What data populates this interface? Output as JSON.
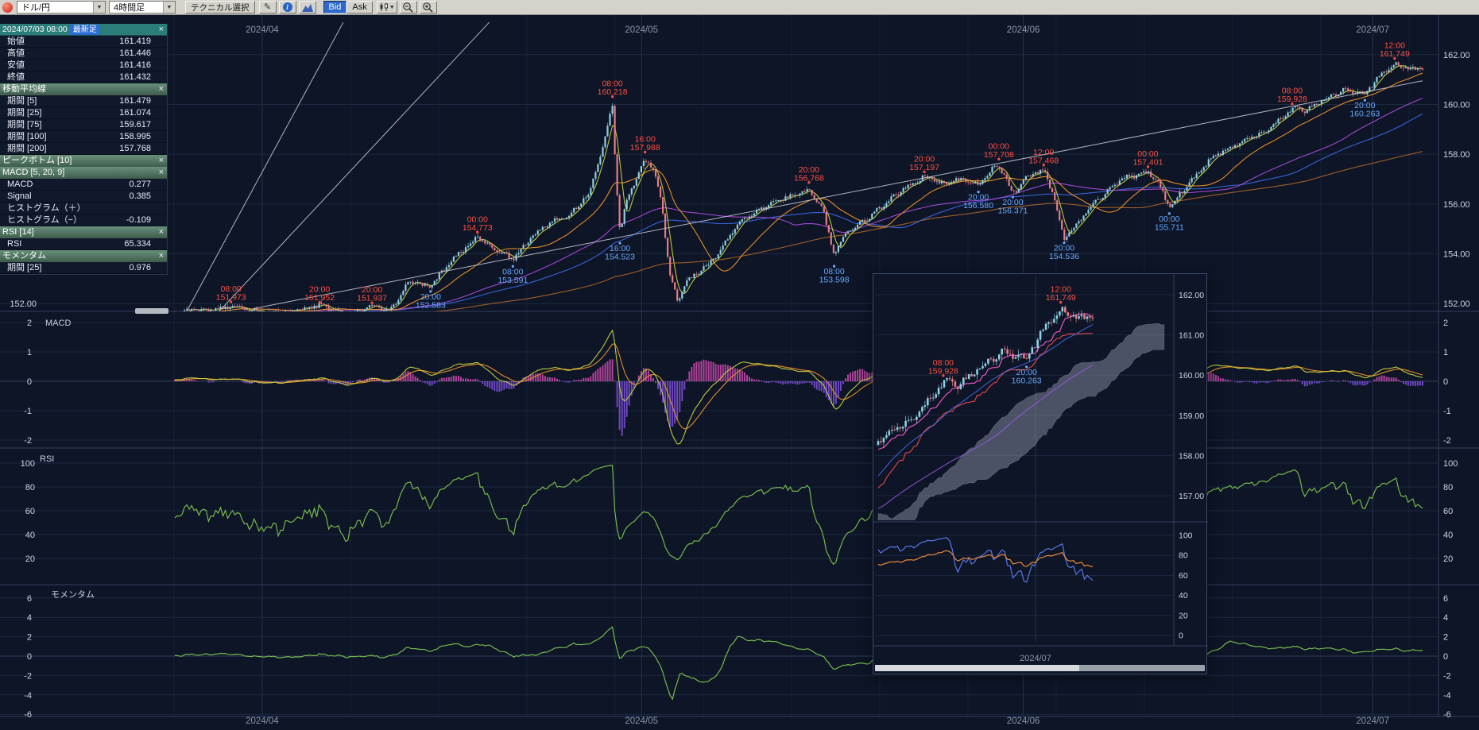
{
  "toolbar": {
    "pair": "ドル/円",
    "timeframe": "4時間足",
    "technical": "テクニカル選択",
    "bid": "Bid",
    "ask": "Ask"
  },
  "info_panel": {
    "timestamp": "2024/07/03 08:00",
    "latest_badge": "最新足",
    "close_glyph": "×",
    "groups": [
      {
        "type": "rows",
        "rows": [
          [
            "始値",
            "161.419"
          ],
          [
            "高値",
            "161.446"
          ],
          [
            "安値",
            "161.416"
          ],
          [
            "終値",
            "161.432"
          ]
        ]
      },
      {
        "type": "section",
        "title": "移動平均線",
        "rows": [
          [
            "期間 [5]",
            "161.479"
          ],
          [
            "期間 [25]",
            "161.074"
          ],
          [
            "期間 [75]",
            "159.617"
          ],
          [
            "期間 [100]",
            "158.995"
          ],
          [
            "期間 [200]",
            "157.768"
          ]
        ]
      },
      {
        "type": "section",
        "title": "ピークボトム [10]",
        "rows": []
      },
      {
        "type": "section",
        "title": "MACD [5, 20, 9]",
        "rows": [
          [
            "MACD",
            "0.277"
          ],
          [
            "Signal",
            "0.385"
          ],
          [
            "ヒストグラム（＋）",
            ""
          ],
          [
            "ヒストグラム（−）",
            "-0.109"
          ]
        ]
      },
      {
        "type": "section",
        "title": "RSI [14]",
        "rows": [
          [
            "RSI",
            "65.334"
          ]
        ]
      },
      {
        "type": "section",
        "title": "モメンタム",
        "rows": [
          [
            "期間 [25]",
            "0.976"
          ]
        ]
      }
    ]
  },
  "chart_data": {
    "type": "candlestick",
    "title": "ドル/円 4時間足",
    "x_labels": [
      "2024/04",
      "2024/05",
      "2024/06",
      "2024/07"
    ],
    "x_label_t": [
      0.07,
      0.374,
      0.68,
      0.96
    ],
    "main": {
      "y_ticks": [
        "162.00",
        "160.00",
        "158.00",
        "156.00",
        "154.00",
        "152.00"
      ],
      "y_tick_values": [
        162,
        160,
        158,
        156,
        154,
        152
      ]
    },
    "price_path": [
      [
        0.0,
        151.6
      ],
      [
        0.025,
        151.75
      ],
      [
        0.045,
        151.9
      ],
      [
        0.068,
        151.62
      ],
      [
        0.09,
        151.72
      ],
      [
        0.116,
        151.88
      ],
      [
        0.138,
        151.62
      ],
      [
        0.158,
        151.87
      ],
      [
        0.172,
        151.65
      ],
      [
        0.188,
        152.95
      ],
      [
        0.205,
        152.68
      ],
      [
        0.222,
        153.7
      ],
      [
        0.2425,
        154.7
      ],
      [
        0.255,
        154.25
      ],
      [
        0.2709,
        153.72
      ],
      [
        0.287,
        154.7
      ],
      [
        0.302,
        155.35
      ],
      [
        0.318,
        155.6
      ],
      [
        0.332,
        156.4
      ],
      [
        0.343,
        158.3
      ],
      [
        0.3507,
        160.05
      ],
      [
        0.3535,
        157.2
      ],
      [
        0.3567,
        154.9
      ],
      [
        0.363,
        156.3
      ],
      [
        0.37,
        157.0
      ],
      [
        0.3769,
        157.8
      ],
      [
        0.3832,
        157.35
      ],
      [
        0.39,
        156.1
      ],
      [
        0.3965,
        153.3
      ],
      [
        0.403,
        152.05
      ],
      [
        0.4105,
        152.95
      ],
      [
        0.418,
        153.2
      ],
      [
        0.429,
        153.55
      ],
      [
        0.4515,
        155.25
      ],
      [
        0.474,
        155.9
      ],
      [
        0.4925,
        156.3
      ],
      [
        0.5082,
        156.62
      ],
      [
        0.519,
        155.85
      ],
      [
        0.5284,
        153.9
      ],
      [
        0.537,
        154.75
      ],
      [
        0.556,
        155.5
      ],
      [
        0.5746,
        156.25
      ],
      [
        0.59,
        156.75
      ],
      [
        0.6007,
        157.08
      ],
      [
        0.616,
        156.85
      ],
      [
        0.631,
        157.02
      ],
      [
        0.644,
        156.68
      ],
      [
        0.653,
        157.3
      ],
      [
        0.6604,
        157.58
      ],
      [
        0.666,
        157.1
      ],
      [
        0.6716,
        156.46
      ],
      [
        0.683,
        157.05
      ],
      [
        0.6963,
        157.35
      ],
      [
        0.704,
        156.35
      ],
      [
        0.7127,
        154.66
      ],
      [
        0.724,
        155.3
      ],
      [
        0.735,
        155.95
      ],
      [
        0.746,
        156.35
      ],
      [
        0.758,
        156.98
      ],
      [
        0.769,
        157.18
      ],
      [
        0.7799,
        157.3
      ],
      [
        0.787,
        156.95
      ],
      [
        0.797,
        155.82
      ],
      [
        0.81,
        156.65
      ],
      [
        0.821,
        157.35
      ],
      [
        0.832,
        157.95
      ],
      [
        0.847,
        158.25
      ],
      [
        0.862,
        158.65
      ],
      [
        0.877,
        159.05
      ],
      [
        0.8955,
        159.8
      ],
      [
        0.907,
        159.7
      ],
      [
        0.922,
        160.25
      ],
      [
        0.937,
        160.6
      ],
      [
        0.9537,
        160.38
      ],
      [
        0.966,
        161.15
      ],
      [
        0.9776,
        161.62
      ],
      [
        0.989,
        161.5
      ],
      [
        1.0,
        161.43
      ]
    ],
    "annotations_high": [
      {
        "t": 0.045,
        "time": "08:00",
        "price": "151.973"
      },
      {
        "t": 0.116,
        "time": "20:00",
        "price": "151.952"
      },
      {
        "t": 0.158,
        "time": "20:00",
        "price": "151.937"
      },
      {
        "t": 0.2425,
        "time": "00:00",
        "price": "154.773"
      },
      {
        "t": 0.3507,
        "time": "08:00",
        "price": "160.218"
      },
      {
        "t": 0.3769,
        "time": "16:00",
        "price": "157.988"
      },
      {
        "t": 0.5082,
        "time": "20:00",
        "price": "156.768"
      },
      {
        "t": 0.6007,
        "time": "20:00",
        "price": "157.197"
      },
      {
        "t": 0.6604,
        "time": "00:00",
        "price": "157.708"
      },
      {
        "t": 0.6963,
        "time": "12:00",
        "price": "157.468"
      },
      {
        "t": 0.7799,
        "time": "00:00",
        "price": "157.401"
      },
      {
        "t": 0.8955,
        "time": "08:00",
        "price": "159.928"
      },
      {
        "t": 0.9776,
        "time": "12:00",
        "price": "161.749"
      }
    ],
    "annotations_low": [
      {
        "t": 0.205,
        "time": "20:00",
        "price": "152.583"
      },
      {
        "t": 0.2709,
        "time": "08:00",
        "price": "153.591"
      },
      {
        "t": 0.3567,
        "time": "16:00",
        "price": "154.523"
      },
      {
        "t": 0.5284,
        "time": "08:00",
        "price": "153.598"
      },
      {
        "t": 0.644,
        "time": "20:00",
        "price": "156.580"
      },
      {
        "t": 0.6716,
        "time": "20:00",
        "price": "156.371"
      },
      {
        "t": 0.7127,
        "time": "20:00",
        "price": "154.536"
      },
      {
        "t": 0.797,
        "time": "00:00",
        "price": "155.711"
      },
      {
        "t": 0.9537,
        "time": "20:00",
        "price": "160.263"
      }
    ],
    "trend_lines": [
      [
        0.008,
        151.55,
        0.135,
        163.3
      ],
      [
        0.032,
        151.5,
        0.252,
        163.3
      ],
      [
        0.063,
        151.8,
        1.0,
        160.95
      ]
    ],
    "indicators": {
      "macd": {
        "label": "MACD",
        "params": "[5, 20, 9]",
        "ticks": [
          2,
          1,
          0,
          -1,
          -2
        ]
      },
      "rsi": {
        "label": "RSI",
        "params": "[14]",
        "ticks": [
          100,
          80,
          60,
          40,
          20
        ]
      },
      "momentum": {
        "label": "モメンタム",
        "params": "[25]",
        "ticks": [
          6,
          4,
          2,
          0,
          -2,
          -4,
          -6
        ]
      }
    },
    "inset": {
      "y_ticks": [
        "162.00",
        "161.00",
        "160.00",
        "159.00",
        "158.00",
        "157.00"
      ],
      "y_tick_values": [
        162,
        161,
        160,
        159,
        158,
        157
      ],
      "osc_ticks": [
        100,
        80,
        60,
        40,
        20,
        0
      ],
      "x_label": "2024/07",
      "x_label_t": 0.96,
      "t_start": 0.85,
      "annotations_high": [
        {
          "t": 0.8955,
          "time": "08:00",
          "price": "159.928"
        },
        {
          "t": 0.9776,
          "time": "12:00",
          "price": "161.749"
        }
      ],
      "annotations_low": [
        {
          "t": 0.9537,
          "time": "20:00",
          "price": "160.263"
        }
      ]
    },
    "colors": {
      "bg": "#0d1526",
      "grid": "#1d2942",
      "grid_minor": "#17223a",
      "month_line": "#26334f",
      "separator": "#33405e",
      "axis_text": "#ccd4e4",
      "month_text": "#8a94ac",
      "label_text": "#c8d0e0",
      "candle_up": "#8fd0e4",
      "candle_down": "#e87c86",
      "ma5": "#c6d23e",
      "ma25": "#f0922c",
      "ma75": "#aa4cd8",
      "ma100": "#3b66e0",
      "ma200": "#a8622a",
      "trend": "#c4c8d4",
      "ann_high": "#ff5044",
      "ann_low": "#6aa8ff",
      "macd_line": "#c6d23e",
      "macd_signal": "#f0922c",
      "hist_pos": "#d04ab0",
      "hist_neg": "#8050e0",
      "rsi_line": "#76b84e",
      "momentum_line": "#76b84e",
      "tenkan": "#f058c8",
      "kijun": "#e04848",
      "inset_ma1": "#4868e8",
      "inset_ma2": "#9858e0",
      "cloud": "#8a90a4",
      "osc_fast": "#5878e8",
      "osc_slow": "#e8883a"
    }
  }
}
